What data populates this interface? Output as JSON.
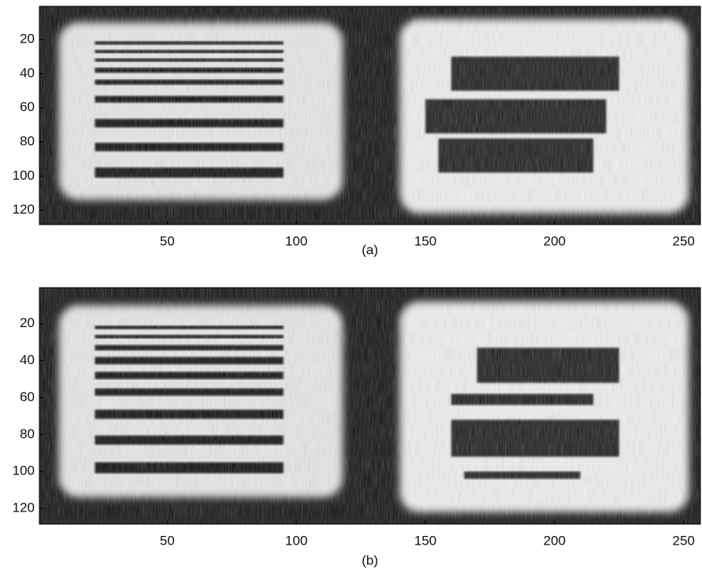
{
  "panels": [
    {
      "caption": "(a)",
      "xlim": [
        0.5,
        256.5
      ],
      "ylim": [
        0.5,
        128.5
      ],
      "xticks": [
        50,
        100,
        150,
        200,
        250
      ],
      "yticks": [
        20,
        40,
        60,
        80,
        100,
        120
      ]
    },
    {
      "caption": "(b)",
      "xlim": [
        0.5,
        256.5
      ],
      "ylim": [
        0.5,
        128.5
      ],
      "xticks": [
        50,
        100,
        150,
        200,
        250
      ],
      "yticks": [
        20,
        40,
        60,
        80,
        100,
        120
      ]
    }
  ]
}
